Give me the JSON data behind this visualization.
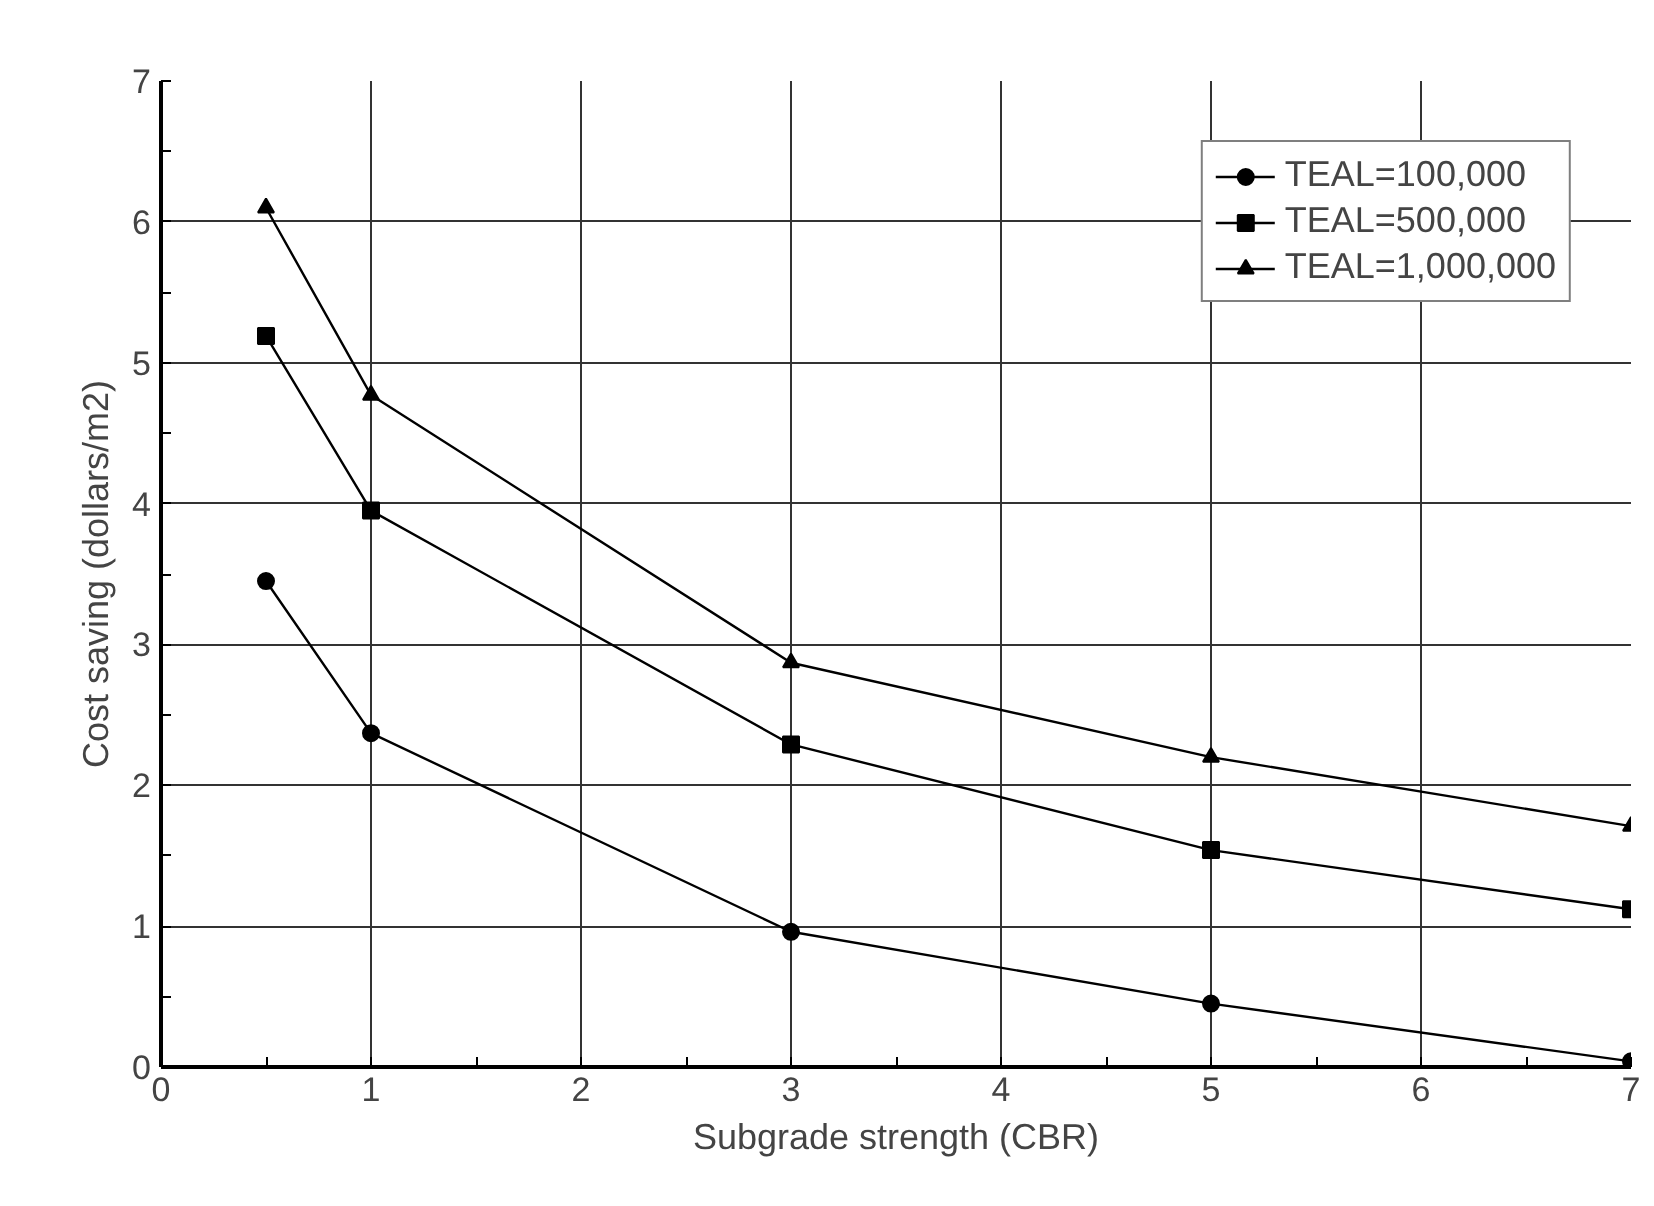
{
  "chart_data": {
    "type": "line",
    "xlabel": "Subgrade strength (CBR)",
    "ylabel": "Cost saving (dollars/m2)",
    "x": [
      0.5,
      1,
      3,
      5,
      7
    ],
    "series": [
      {
        "name": "TEAL=100,000",
        "color": "#000000",
        "marker": "circle",
        "values": [
          3.45,
          2.37,
          0.96,
          0.45,
          0.04
        ]
      },
      {
        "name": "TEAL=500,000",
        "color": "#000000",
        "marker": "square",
        "values": [
          5.19,
          3.95,
          2.29,
          1.54,
          1.12
        ]
      },
      {
        "name": "TEAL=1,000,000",
        "color": "#000000",
        "marker": "triangle",
        "values": [
          6.1,
          4.77,
          2.87,
          2.2,
          1.71
        ]
      }
    ],
    "xlim": [
      0,
      7
    ],
    "ylim": [
      0,
      7
    ],
    "xticks": [
      0,
      1,
      2,
      3,
      4,
      5,
      6,
      7
    ],
    "yticks": [
      0,
      1,
      2,
      3,
      4,
      5,
      6,
      7
    ],
    "grid": true,
    "legend": "top right",
    "line_style": "solid"
  }
}
